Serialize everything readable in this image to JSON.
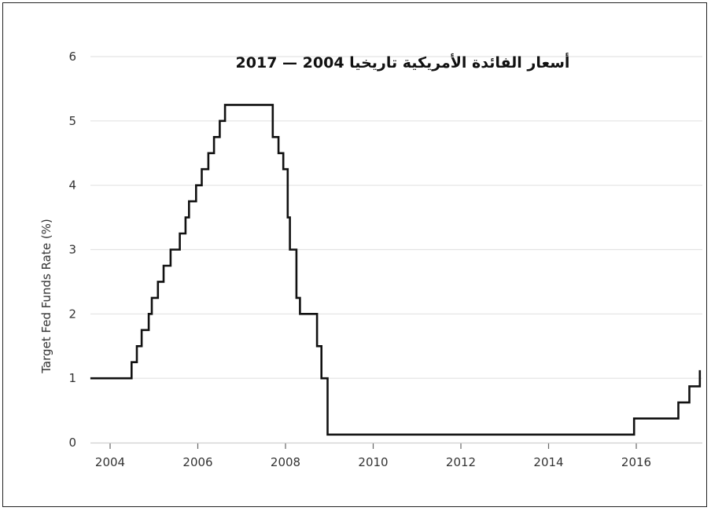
{
  "chart_data": {
    "type": "line",
    "step": true,
    "title": "أسعار الفائدة الأمريكية تاريخيا 2004 — 2017",
    "xlabel": "",
    "ylabel": "Target Fed Funds Rate (%)",
    "xlim": [
      2003.5,
      2017.5
    ],
    "ylim": [
      0,
      6
    ],
    "x_ticks": [
      2004,
      2006,
      2008,
      2010,
      2012,
      2014,
      2016
    ],
    "x_tick_labels": [
      "2004",
      "2006",
      "2008",
      "2010",
      "2012",
      "2014",
      "2016"
    ],
    "y_ticks": [
      0,
      1,
      2,
      3,
      4,
      5,
      6
    ],
    "y_tick_labels": [
      "0",
      "1",
      "2",
      "3",
      "4",
      "5",
      "6"
    ],
    "grid": "horizontal",
    "line_color": "#111111",
    "grid_color": "#e3e3e3",
    "series": [
      {
        "points": [
          [
            2003.55,
            1.0
          ],
          [
            2004.49,
            1.25
          ],
          [
            2004.61,
            1.5
          ],
          [
            2004.72,
            1.75
          ],
          [
            2004.88,
            2.0
          ],
          [
            2004.95,
            2.25
          ],
          [
            2005.09,
            2.5
          ],
          [
            2005.22,
            2.75
          ],
          [
            2005.38,
            3.0
          ],
          [
            2005.59,
            3.25
          ],
          [
            2005.72,
            3.5
          ],
          [
            2005.8,
            3.75
          ],
          [
            2005.96,
            4.0
          ],
          [
            2006.09,
            4.25
          ],
          [
            2006.24,
            4.5
          ],
          [
            2006.37,
            4.75
          ],
          [
            2006.5,
            5.0
          ],
          [
            2006.62,
            5.25
          ],
          [
            2007.71,
            4.75
          ],
          [
            2007.84,
            4.5
          ],
          [
            2007.95,
            4.25
          ],
          [
            2008.05,
            3.5
          ],
          [
            2008.1,
            3.0
          ],
          [
            2008.25,
            2.25
          ],
          [
            2008.33,
            2.0
          ],
          [
            2008.72,
            1.5
          ],
          [
            2008.82,
            1.0
          ],
          [
            2008.96,
            0.125
          ],
          [
            2015.95,
            0.375
          ],
          [
            2016.96,
            0.625
          ],
          [
            2017.21,
            0.875
          ],
          [
            2017.45,
            1.125
          ]
        ]
      }
    ]
  }
}
